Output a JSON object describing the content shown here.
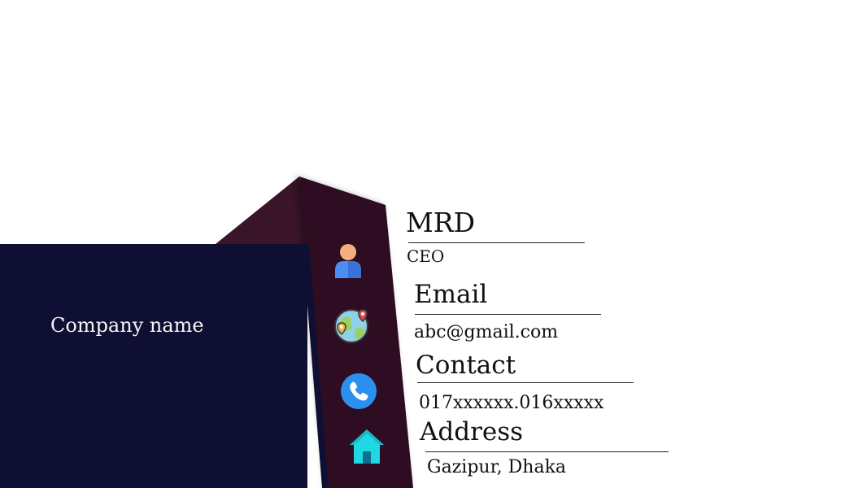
{
  "company": {
    "name": "Company name"
  },
  "person": {
    "name": "MRD",
    "title": "CEO"
  },
  "contact_info": {
    "email_label": "Email",
    "email": "abc@gmail.com",
    "phone_label": "Contact",
    "phone": "017xxxxxx.016xxxxx",
    "address_label": "Address",
    "address": "Gazipur, Dhaka"
  },
  "icons": {
    "person": "user-icon",
    "email": "globe-location-icon",
    "phone": "phone-icon",
    "address": "home-icon"
  },
  "colors": {
    "background": "#ffffff",
    "navy_panel": "#0f0f34",
    "maroon_strip": "#2d1020",
    "maroon_wing": "#3a1428",
    "text_dark": "#111111",
    "text_light": "#f5f5f5",
    "phone_blue": "#2b8ff0",
    "home_cyan": "#1ed8e3",
    "user_orange": "#f3b07d",
    "user_blue": "#4b8df5"
  }
}
